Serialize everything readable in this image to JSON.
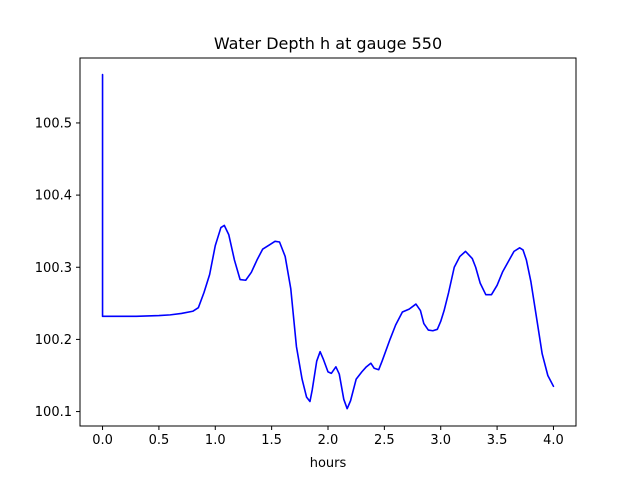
{
  "colors": {
    "background": "#ffffff",
    "axes": "#000000",
    "series": "#0000ff"
  },
  "chart_data": {
    "type": "line",
    "title": "Water Depth h at gauge 550",
    "xlabel": "hours",
    "ylabel": "",
    "xlim": [
      -0.2,
      4.2
    ],
    "ylim": [
      100.08,
      100.59
    ],
    "xticks": [
      0.0,
      0.5,
      1.0,
      1.5,
      2.0,
      2.5,
      3.0,
      3.5,
      4.0
    ],
    "xtick_labels": [
      "0.0",
      "0.5",
      "1.0",
      "1.5",
      "2.0",
      "2.5",
      "3.0",
      "3.5",
      "4.0"
    ],
    "yticks": [
      100.1,
      100.2,
      100.3,
      100.4,
      100.5
    ],
    "ytick_labels": [
      "100.1",
      "100.2",
      "100.3",
      "100.4",
      "100.5"
    ],
    "grid": false,
    "legend": "none",
    "series": [
      {
        "color": "#0000ff",
        "x": [
          0.0,
          0.0,
          0.0,
          0.1,
          0.3,
          0.5,
          0.6,
          0.7,
          0.8,
          0.85,
          0.9,
          0.95,
          1.0,
          1.05,
          1.08,
          1.12,
          1.17,
          1.22,
          1.27,
          1.32,
          1.37,
          1.42,
          1.48,
          1.53,
          1.57,
          1.62,
          1.67,
          1.72,
          1.77,
          1.81,
          1.84,
          1.86,
          1.9,
          1.93,
          1.96,
          2.0,
          2.03,
          2.07,
          2.1,
          2.14,
          2.17,
          2.2,
          2.25,
          2.3,
          2.34,
          2.38,
          2.41,
          2.45,
          2.48,
          2.55,
          2.6,
          2.66,
          2.72,
          2.78,
          2.82,
          2.85,
          2.89,
          2.93,
          2.97,
          3.0,
          3.03,
          3.07,
          3.12,
          3.17,
          3.22,
          3.28,
          3.31,
          3.35,
          3.4,
          3.45,
          3.5,
          3.55,
          3.6,
          3.65,
          3.7,
          3.73,
          3.76,
          3.8,
          3.85,
          3.9,
          3.95,
          4.0
        ],
        "y": [
          100.567,
          100.29,
          100.232,
          100.232,
          100.232,
          100.233,
          100.234,
          100.236,
          100.239,
          100.244,
          100.265,
          100.29,
          100.33,
          100.355,
          100.358,
          100.345,
          100.31,
          100.283,
          100.282,
          100.293,
          100.31,
          100.325,
          100.331,
          100.336,
          100.335,
          100.315,
          100.27,
          100.19,
          100.145,
          100.12,
          100.114,
          100.13,
          100.17,
          100.183,
          100.172,
          100.155,
          100.153,
          100.162,
          100.152,
          100.117,
          100.104,
          100.115,
          100.145,
          100.155,
          100.162,
          100.167,
          100.16,
          100.158,
          100.17,
          100.2,
          100.22,
          100.238,
          100.242,
          100.249,
          100.24,
          100.222,
          100.213,
          100.212,
          100.214,
          100.225,
          100.24,
          100.265,
          100.3,
          100.315,
          100.322,
          100.312,
          100.3,
          100.278,
          100.262,
          100.262,
          100.275,
          100.294,
          100.308,
          100.322,
          100.327,
          100.324,
          100.31,
          100.28,
          100.23,
          100.18,
          100.15,
          100.135
        ]
      }
    ]
  }
}
